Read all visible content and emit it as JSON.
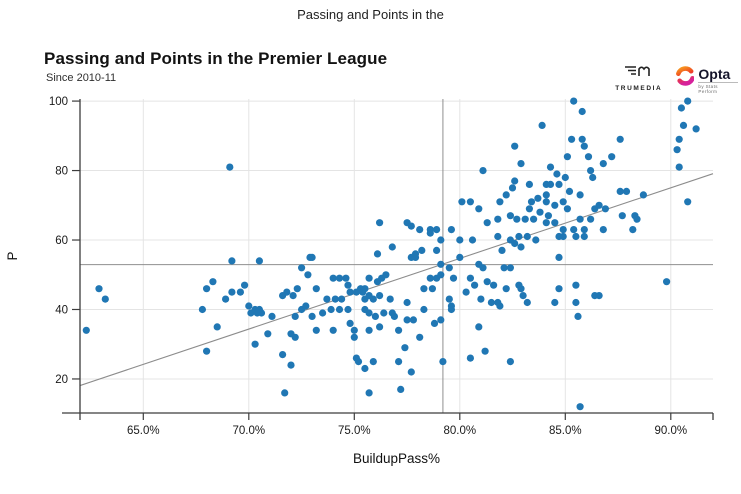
{
  "page": {
    "header_title": "Passing and Points in the"
  },
  "chart": {
    "title": "Passing and Points in the Premier League",
    "subtitle": "Since 2010-11",
    "logos": {
      "trumedia": "TRUMEDIA",
      "opta": "Opta",
      "opta_sub": "by Stats Perform"
    }
  },
  "chart_data": {
    "type": "scatter",
    "title": "Passing and Points in the Premier League",
    "subtitle": "Since 2010-11",
    "xlabel": "BuildupPass%",
    "ylabel": "P",
    "xlim": [
      62.0,
      92.0
    ],
    "ylim": [
      10.2,
      100.6
    ],
    "x_ticks": [
      65,
      70,
      75,
      80,
      85,
      90
    ],
    "x_tick_labels": [
      "65.0%",
      "70.0%",
      "75.0%",
      "80.0%",
      "85.0%",
      "90.0%"
    ],
    "y_ticks": [
      20,
      40,
      60,
      80,
      100
    ],
    "grid": true,
    "legend": "none",
    "reference_lines": {
      "x": 79.2,
      "y": 52.9
    },
    "trend_line": {
      "x1": 62.0,
      "y1": 18.1,
      "x2": 92.0,
      "y2": 79.1
    },
    "colors": {
      "point": "#2077b4",
      "grid": "#e4e4e4",
      "axis": "#3c3c3c",
      "reference": "#8f8f8f",
      "trend": "#8c8c8c",
      "tick_text": "#1a1a1a"
    },
    "points": [
      [
        62.3,
        34
      ],
      [
        62.9,
        46
      ],
      [
        63.2,
        43
      ],
      [
        67.8,
        40
      ],
      [
        68.0,
        46
      ],
      [
        68.0,
        28
      ],
      [
        68.3,
        48
      ],
      [
        68.5,
        35
      ],
      [
        68.9,
        43
      ],
      [
        69.1,
        81
      ],
      [
        69.2,
        54
      ],
      [
        69.2,
        45
      ],
      [
        69.6,
        45
      ],
      [
        69.8,
        47
      ],
      [
        70.0,
        41
      ],
      [
        70.1,
        39
      ],
      [
        70.3,
        40
      ],
      [
        70.3,
        30
      ],
      [
        70.4,
        39
      ],
      [
        70.5,
        40
      ],
      [
        70.5,
        54
      ],
      [
        70.6,
        39
      ],
      [
        70.9,
        33
      ],
      [
        71.1,
        38
      ],
      [
        71.6,
        44
      ],
      [
        71.6,
        27
      ],
      [
        71.7,
        16
      ],
      [
        71.8,
        45
      ],
      [
        72.0,
        33
      ],
      [
        72.0,
        24
      ],
      [
        72.1,
        44
      ],
      [
        72.2,
        38
      ],
      [
        72.2,
        32
      ],
      [
        72.3,
        46
      ],
      [
        72.5,
        52
      ],
      [
        72.5,
        40
      ],
      [
        72.7,
        41
      ],
      [
        72.8,
        50
      ],
      [
        72.9,
        55
      ],
      [
        73.0,
        55
      ],
      [
        73.0,
        38
      ],
      [
        73.2,
        46
      ],
      [
        73.2,
        34
      ],
      [
        73.5,
        39
      ],
      [
        73.7,
        43
      ],
      [
        73.9,
        40
      ],
      [
        74.0,
        49
      ],
      [
        74.0,
        34
      ],
      [
        74.1,
        43
      ],
      [
        74.3,
        49
      ],
      [
        74.3,
        40
      ],
      [
        74.4,
        43
      ],
      [
        74.6,
        49
      ],
      [
        74.7,
        47
      ],
      [
        74.7,
        40
      ],
      [
        74.8,
        45
      ],
      [
        74.8,
        36
      ],
      [
        75.0,
        34
      ],
      [
        75.0,
        32
      ],
      [
        75.1,
        45
      ],
      [
        75.1,
        26
      ],
      [
        75.2,
        25
      ],
      [
        75.3,
        46
      ],
      [
        75.4,
        45
      ],
      [
        75.5,
        46
      ],
      [
        75.5,
        43
      ],
      [
        75.5,
        40
      ],
      [
        75.5,
        23
      ],
      [
        75.7,
        49
      ],
      [
        75.7,
        44
      ],
      [
        75.7,
        39
      ],
      [
        75.7,
        34
      ],
      [
        75.7,
        16
      ],
      [
        75.9,
        43
      ],
      [
        75.9,
        25
      ],
      [
        76.0,
        38
      ],
      [
        76.1,
        56
      ],
      [
        76.1,
        48
      ],
      [
        76.2,
        65
      ],
      [
        76.2,
        44
      ],
      [
        76.2,
        35
      ],
      [
        76.3,
        49
      ],
      [
        76.4,
        39
      ],
      [
        76.5,
        50
      ],
      [
        76.7,
        43
      ],
      [
        76.8,
        58
      ],
      [
        76.8,
        39
      ],
      [
        76.9,
        38
      ],
      [
        77.1,
        25
      ],
      [
        77.1,
        34
      ],
      [
        77.2,
        17
      ],
      [
        77.4,
        29
      ],
      [
        77.5,
        65
      ],
      [
        77.5,
        42
      ],
      [
        77.5,
        37
      ],
      [
        77.7,
        64
      ],
      [
        77.7,
        55
      ],
      [
        77.7,
        22
      ],
      [
        77.8,
        37
      ],
      [
        77.9,
        55
      ],
      [
        77.9,
        56
      ],
      [
        78.1,
        63
      ],
      [
        78.1,
        32
      ],
      [
        78.2,
        57
      ],
      [
        78.3,
        46
      ],
      [
        78.3,
        40
      ],
      [
        78.6,
        63
      ],
      [
        78.6,
        62
      ],
      [
        78.6,
        49
      ],
      [
        78.7,
        46
      ],
      [
        78.8,
        36
      ],
      [
        78.9,
        63
      ],
      [
        78.9,
        57
      ],
      [
        78.9,
        49
      ],
      [
        79.1,
        60
      ],
      [
        79.1,
        53
      ],
      [
        79.1,
        50
      ],
      [
        79.1,
        37
      ],
      [
        79.2,
        25
      ],
      [
        79.5,
        52
      ],
      [
        79.5,
        43
      ],
      [
        79.6,
        63
      ],
      [
        79.6,
        41
      ],
      [
        79.6,
        40
      ],
      [
        79.7,
        49
      ],
      [
        80.0,
        60
      ],
      [
        80.0,
        55
      ],
      [
        80.1,
        71
      ],
      [
        80.3,
        45
      ],
      [
        80.5,
        71
      ],
      [
        80.5,
        49
      ],
      [
        80.5,
        26
      ],
      [
        80.6,
        60
      ],
      [
        80.7,
        47
      ],
      [
        80.9,
        69
      ],
      [
        80.9,
        53
      ],
      [
        80.9,
        35
      ],
      [
        81.0,
        43
      ],
      [
        81.1,
        80
      ],
      [
        81.1,
        52
      ],
      [
        81.2,
        28
      ],
      [
        81.3,
        65
      ],
      [
        81.3,
        48
      ],
      [
        81.5,
        42
      ],
      [
        81.6,
        47
      ],
      [
        81.8,
        66
      ],
      [
        81.8,
        61
      ],
      [
        81.8,
        42
      ],
      [
        81.9,
        71
      ],
      [
        81.9,
        41
      ],
      [
        82.0,
        57
      ],
      [
        82.1,
        52
      ],
      [
        82.2,
        73
      ],
      [
        82.2,
        46
      ],
      [
        82.4,
        67
      ],
      [
        82.4,
        60
      ],
      [
        82.4,
        52
      ],
      [
        82.4,
        25
      ],
      [
        82.5,
        75
      ],
      [
        82.6,
        87
      ],
      [
        82.6,
        77
      ],
      [
        82.6,
        59
      ],
      [
        82.7,
        66
      ],
      [
        82.8,
        47
      ],
      [
        82.8,
        61
      ],
      [
        82.9,
        82
      ],
      [
        82.9,
        58
      ],
      [
        82.9,
        46
      ],
      [
        83.0,
        44
      ],
      [
        83.2,
        42
      ],
      [
        83.1,
        66
      ],
      [
        83.2,
        61
      ],
      [
        83.3,
        76
      ],
      [
        83.3,
        69
      ],
      [
        83.4,
        71
      ],
      [
        83.5,
        66
      ],
      [
        83.6,
        60
      ],
      [
        83.7,
        72
      ],
      [
        83.8,
        68
      ],
      [
        83.9,
        93
      ],
      [
        84.1,
        76
      ],
      [
        84.1,
        73
      ],
      [
        84.1,
        71
      ],
      [
        84.1,
        65
      ],
      [
        84.2,
        67
      ],
      [
        84.3,
        81
      ],
      [
        84.3,
        76
      ],
      [
        84.5,
        70
      ],
      [
        84.5,
        65
      ],
      [
        84.5,
        42
      ],
      [
        84.6,
        79
      ],
      [
        84.7,
        76
      ],
      [
        84.7,
        55
      ],
      [
        84.7,
        46
      ],
      [
        84.7,
        61
      ],
      [
        84.9,
        71
      ],
      [
        84.9,
        63
      ],
      [
        84.9,
        61
      ],
      [
        85.0,
        78
      ],
      [
        85.1,
        84
      ],
      [
        85.1,
        69
      ],
      [
        85.2,
        74
      ],
      [
        85.3,
        89
      ],
      [
        85.4,
        100
      ],
      [
        85.4,
        63
      ],
      [
        85.5,
        61
      ],
      [
        85.5,
        47
      ],
      [
        85.5,
        42
      ],
      [
        85.6,
        38
      ],
      [
        85.7,
        73
      ],
      [
        85.7,
        66
      ],
      [
        85.7,
        12
      ],
      [
        85.8,
        97
      ],
      [
        85.8,
        89
      ],
      [
        85.9,
        87
      ],
      [
        85.9,
        63
      ],
      [
        85.9,
        61
      ],
      [
        86.1,
        84
      ],
      [
        86.2,
        80
      ],
      [
        86.2,
        66
      ],
      [
        86.3,
        78
      ],
      [
        86.4,
        69
      ],
      [
        86.4,
        44
      ],
      [
        86.6,
        70
      ],
      [
        86.6,
        44
      ],
      [
        86.8,
        82
      ],
      [
        86.8,
        63
      ],
      [
        86.9,
        69
      ],
      [
        87.2,
        84
      ],
      [
        87.6,
        89
      ],
      [
        87.6,
        74
      ],
      [
        87.9,
        74
      ],
      [
        87.7,
        67
      ],
      [
        88.3,
        67
      ],
      [
        88.2,
        63
      ],
      [
        88.4,
        66
      ],
      [
        88.7,
        73
      ],
      [
        89.8,
        48
      ],
      [
        90.3,
        86
      ],
      [
        90.4,
        89
      ],
      [
        90.4,
        81
      ],
      [
        90.5,
        98
      ],
      [
        90.6,
        93
      ],
      [
        90.8,
        100
      ],
      [
        90.8,
        71
      ],
      [
        91.2,
        92
      ]
    ]
  }
}
